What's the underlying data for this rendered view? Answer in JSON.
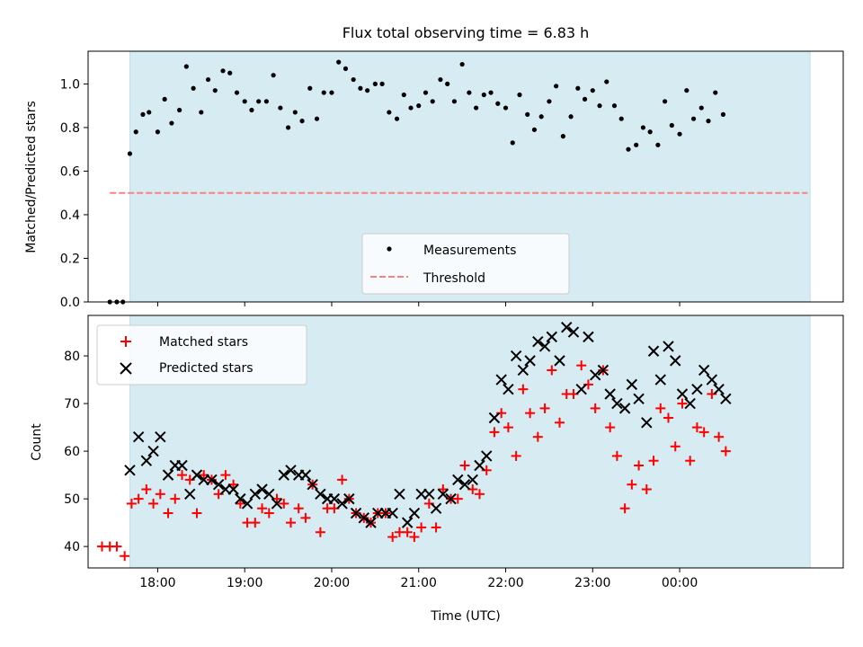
{
  "chart_data": {
    "title": "Flux total observing time = 6.83 h",
    "xlabel": "Time (UTC)",
    "x_unit": "hours (UTC clock, values beyond 24 are after midnight)",
    "xlim": [
      17.2,
      25.88
    ],
    "xticks": [
      18,
      19,
      20,
      21,
      22,
      23,
      24
    ],
    "xtick_labels": [
      "18:00",
      "19:00",
      "20:00",
      "21:00",
      "22:00",
      "23:00",
      "00:00"
    ],
    "shaded_span": [
      17.68,
      25.5
    ],
    "shade_color": "#add8e6",
    "panels": [
      {
        "type": "scatter",
        "ylabel": "Matched/Predicted stars",
        "ylim": [
          0,
          1.15
        ],
        "yticks": [
          0.0,
          0.2,
          0.4,
          0.6,
          0.8,
          1.0
        ],
        "ytick_labels": [
          "0.0",
          "0.2",
          "0.4",
          "0.6",
          "0.8",
          "1.0"
        ],
        "legend": {
          "position": "lower-center",
          "entries": [
            "Measurements",
            "Threshold"
          ]
        },
        "threshold": {
          "name": "Threshold",
          "value": 0.5,
          "x_range": [
            17.45,
            25.47
          ],
          "color": "#ff7f7f",
          "style": "dashed"
        },
        "series": [
          {
            "name": "Measurements",
            "color": "#000000",
            "marker": "dot",
            "x": [
              17.45,
              17.53,
              17.6,
              17.68,
              17.75,
              17.83,
              17.9,
              18.0,
              18.08,
              18.16,
              18.25,
              18.33,
              18.41,
              18.5,
              18.58,
              18.66,
              18.75,
              18.83,
              18.91,
              19.0,
              19.08,
              19.16,
              19.25,
              19.33,
              19.41,
              19.5,
              19.58,
              19.66,
              19.75,
              19.83,
              19.91,
              20.0,
              20.08,
              20.16,
              20.25,
              20.33,
              20.41,
              20.5,
              20.58,
              20.66,
              20.75,
              20.83,
              20.91,
              21.0,
              21.08,
              21.16,
              21.25,
              21.33,
              21.41,
              21.5,
              21.58,
              21.66,
              21.75,
              21.83,
              21.91,
              22.0,
              22.08,
              22.16,
              22.25,
              22.33,
              22.41,
              22.5,
              22.58,
              22.66,
              22.75,
              22.83,
              22.91,
              23.0,
              23.08,
              23.16,
              23.25,
              23.33,
              23.41,
              23.5,
              23.58,
              23.66,
              23.75,
              23.83,
              23.91,
              24.0,
              24.08,
              24.16,
              24.25,
              24.33,
              24.41,
              24.5
            ],
            "y": [
              0.0,
              0.0,
              0.0,
              0.68,
              0.78,
              0.86,
              0.87,
              0.78,
              0.93,
              0.82,
              0.88,
              1.08,
              0.98,
              0.87,
              1.02,
              0.97,
              1.06,
              1.05,
              0.96,
              0.92,
              0.88,
              0.92,
              0.92,
              1.04,
              0.89,
              0.8,
              0.87,
              0.83,
              0.98,
              0.84,
              0.96,
              0.96,
              1.1,
              1.07,
              1.02,
              0.98,
              0.97,
              1.0,
              1.0,
              0.87,
              0.84,
              0.95,
              0.89,
              0.9,
              0.96,
              0.92,
              1.02,
              1.0,
              0.92,
              1.09,
              0.96,
              0.89,
              0.95,
              0.96,
              0.91,
              0.89,
              0.73,
              0.95,
              0.86,
              0.79,
              0.85,
              0.92,
              0.99,
              0.76,
              0.85,
              0.98,
              0.93,
              0.97,
              0.9,
              1.01,
              0.9,
              0.84,
              0.7,
              0.72,
              0.8,
              0.78,
              0.72,
              0.92,
              0.81,
              0.77,
              0.97,
              0.84,
              0.89,
              0.83,
              0.96,
              0.86
            ]
          }
        ]
      },
      {
        "type": "scatter",
        "ylabel": "Count",
        "ylim": [
          35.5,
          88.5
        ],
        "yticks": [
          40,
          50,
          60,
          70,
          80
        ],
        "ytick_labels": [
          "40",
          "50",
          "60",
          "70",
          "80"
        ],
        "legend": {
          "position": "upper-left",
          "entries": [
            "Matched stars",
            "Predicted stars"
          ]
        },
        "series": [
          {
            "name": "Matched stars",
            "color": "#ff0000",
            "marker": "plus",
            "x": [
              17.36,
              17.45,
              17.53,
              17.62,
              17.7,
              17.78,
              17.87,
              17.95,
              18.03,
              18.12,
              18.2,
              18.28,
              18.37,
              18.45,
              18.53,
              18.62,
              18.7,
              18.78,
              18.87,
              18.95,
              19.03,
              19.12,
              19.2,
              19.28,
              19.37,
              19.45,
              19.53,
              19.62,
              19.7,
              19.78,
              19.87,
              19.95,
              20.03,
              20.12,
              20.2,
              20.28,
              20.37,
              20.45,
              20.53,
              20.62,
              20.7,
              20.78,
              20.87,
              20.95,
              21.03,
              21.12,
              21.2,
              21.28,
              21.37,
              21.45,
              21.53,
              21.62,
              21.7,
              21.78,
              21.87,
              21.95,
              22.03,
              22.12,
              22.2,
              22.28,
              22.37,
              22.45,
              22.53,
              22.62,
              22.7,
              22.78,
              22.87,
              22.95,
              23.03,
              23.12,
              23.2,
              23.28,
              23.37,
              23.45,
              23.53,
              23.62,
              23.7,
              23.78,
              23.87,
              23.95,
              24.03,
              24.12,
              24.2,
              24.28,
              24.37,
              24.45,
              24.53
            ],
            "y": [
              40,
              40,
              40,
              38,
              49,
              50,
              52,
              49,
              51,
              47,
              50,
              55,
              54,
              47,
              55,
              54,
              51,
              55,
              53,
              49,
              45,
              45,
              48,
              47,
              50,
              49,
              45,
              48,
              46,
              53,
              43,
              48,
              48,
              54,
              50,
              47,
              46,
              45,
              47,
              47,
              42,
              43,
              43,
              42,
              44,
              49,
              44,
              52,
              50,
              50,
              57,
              52,
              51,
              56,
              64,
              68,
              65,
              59,
              73,
              68,
              63,
              69,
              77,
              66,
              72,
              72,
              78,
              74,
              69,
              77,
              65,
              59,
              48,
              53,
              57,
              52,
              58,
              69,
              67,
              61,
              70,
              58,
              65,
              64,
              72,
              63,
              60
            ]
          },
          {
            "name": "Predicted stars",
            "color": "#000000",
            "marker": "x",
            "x": [
              17.68,
              17.78,
              17.87,
              17.95,
              18.03,
              18.12,
              18.2,
              18.28,
              18.37,
              18.45,
              18.53,
              18.62,
              18.7,
              18.78,
              18.87,
              18.95,
              19.03,
              19.12,
              19.2,
              19.28,
              19.37,
              19.45,
              19.53,
              19.62,
              19.7,
              19.78,
              19.87,
              19.95,
              20.03,
              20.12,
              20.2,
              20.28,
              20.37,
              20.45,
              20.53,
              20.62,
              20.7,
              20.78,
              20.87,
              20.95,
              21.03,
              21.12,
              21.2,
              21.28,
              21.37,
              21.45,
              21.53,
              21.62,
              21.7,
              21.78,
              21.87,
              21.95,
              22.03,
              22.12,
              22.2,
              22.28,
              22.37,
              22.45,
              22.53,
              22.62,
              22.7,
              22.78,
              22.87,
              22.95,
              23.03,
              23.12,
              23.2,
              23.28,
              23.37,
              23.45,
              23.53,
              23.62,
              23.7,
              23.78,
              23.87,
              23.95,
              24.03,
              24.12,
              24.2,
              24.28,
              24.37,
              24.45,
              24.53
            ],
            "y": [
              56,
              63,
              58,
              60,
              63,
              55,
              57,
              57,
              51,
              55,
              54,
              54,
              53,
              52,
              52,
              50,
              49,
              51,
              52,
              51,
              49,
              55,
              56,
              55,
              55,
              53,
              51,
              50,
              50,
              49,
              50,
              47,
              46,
              45,
              47,
              47,
              47,
              51,
              45,
              47,
              51,
              51,
              48,
              51,
              50,
              54,
              53,
              54,
              57,
              59,
              67,
              75,
              73,
              80,
              77,
              79,
              83,
              82,
              84,
              79,
              86,
              85,
              73,
              84,
              76,
              77,
              72,
              70,
              69,
              74,
              71,
              66,
              81,
              75,
              82,
              79,
              72,
              70,
              73,
              77,
              75,
              73,
              71
            ]
          }
        ]
      }
    ]
  }
}
